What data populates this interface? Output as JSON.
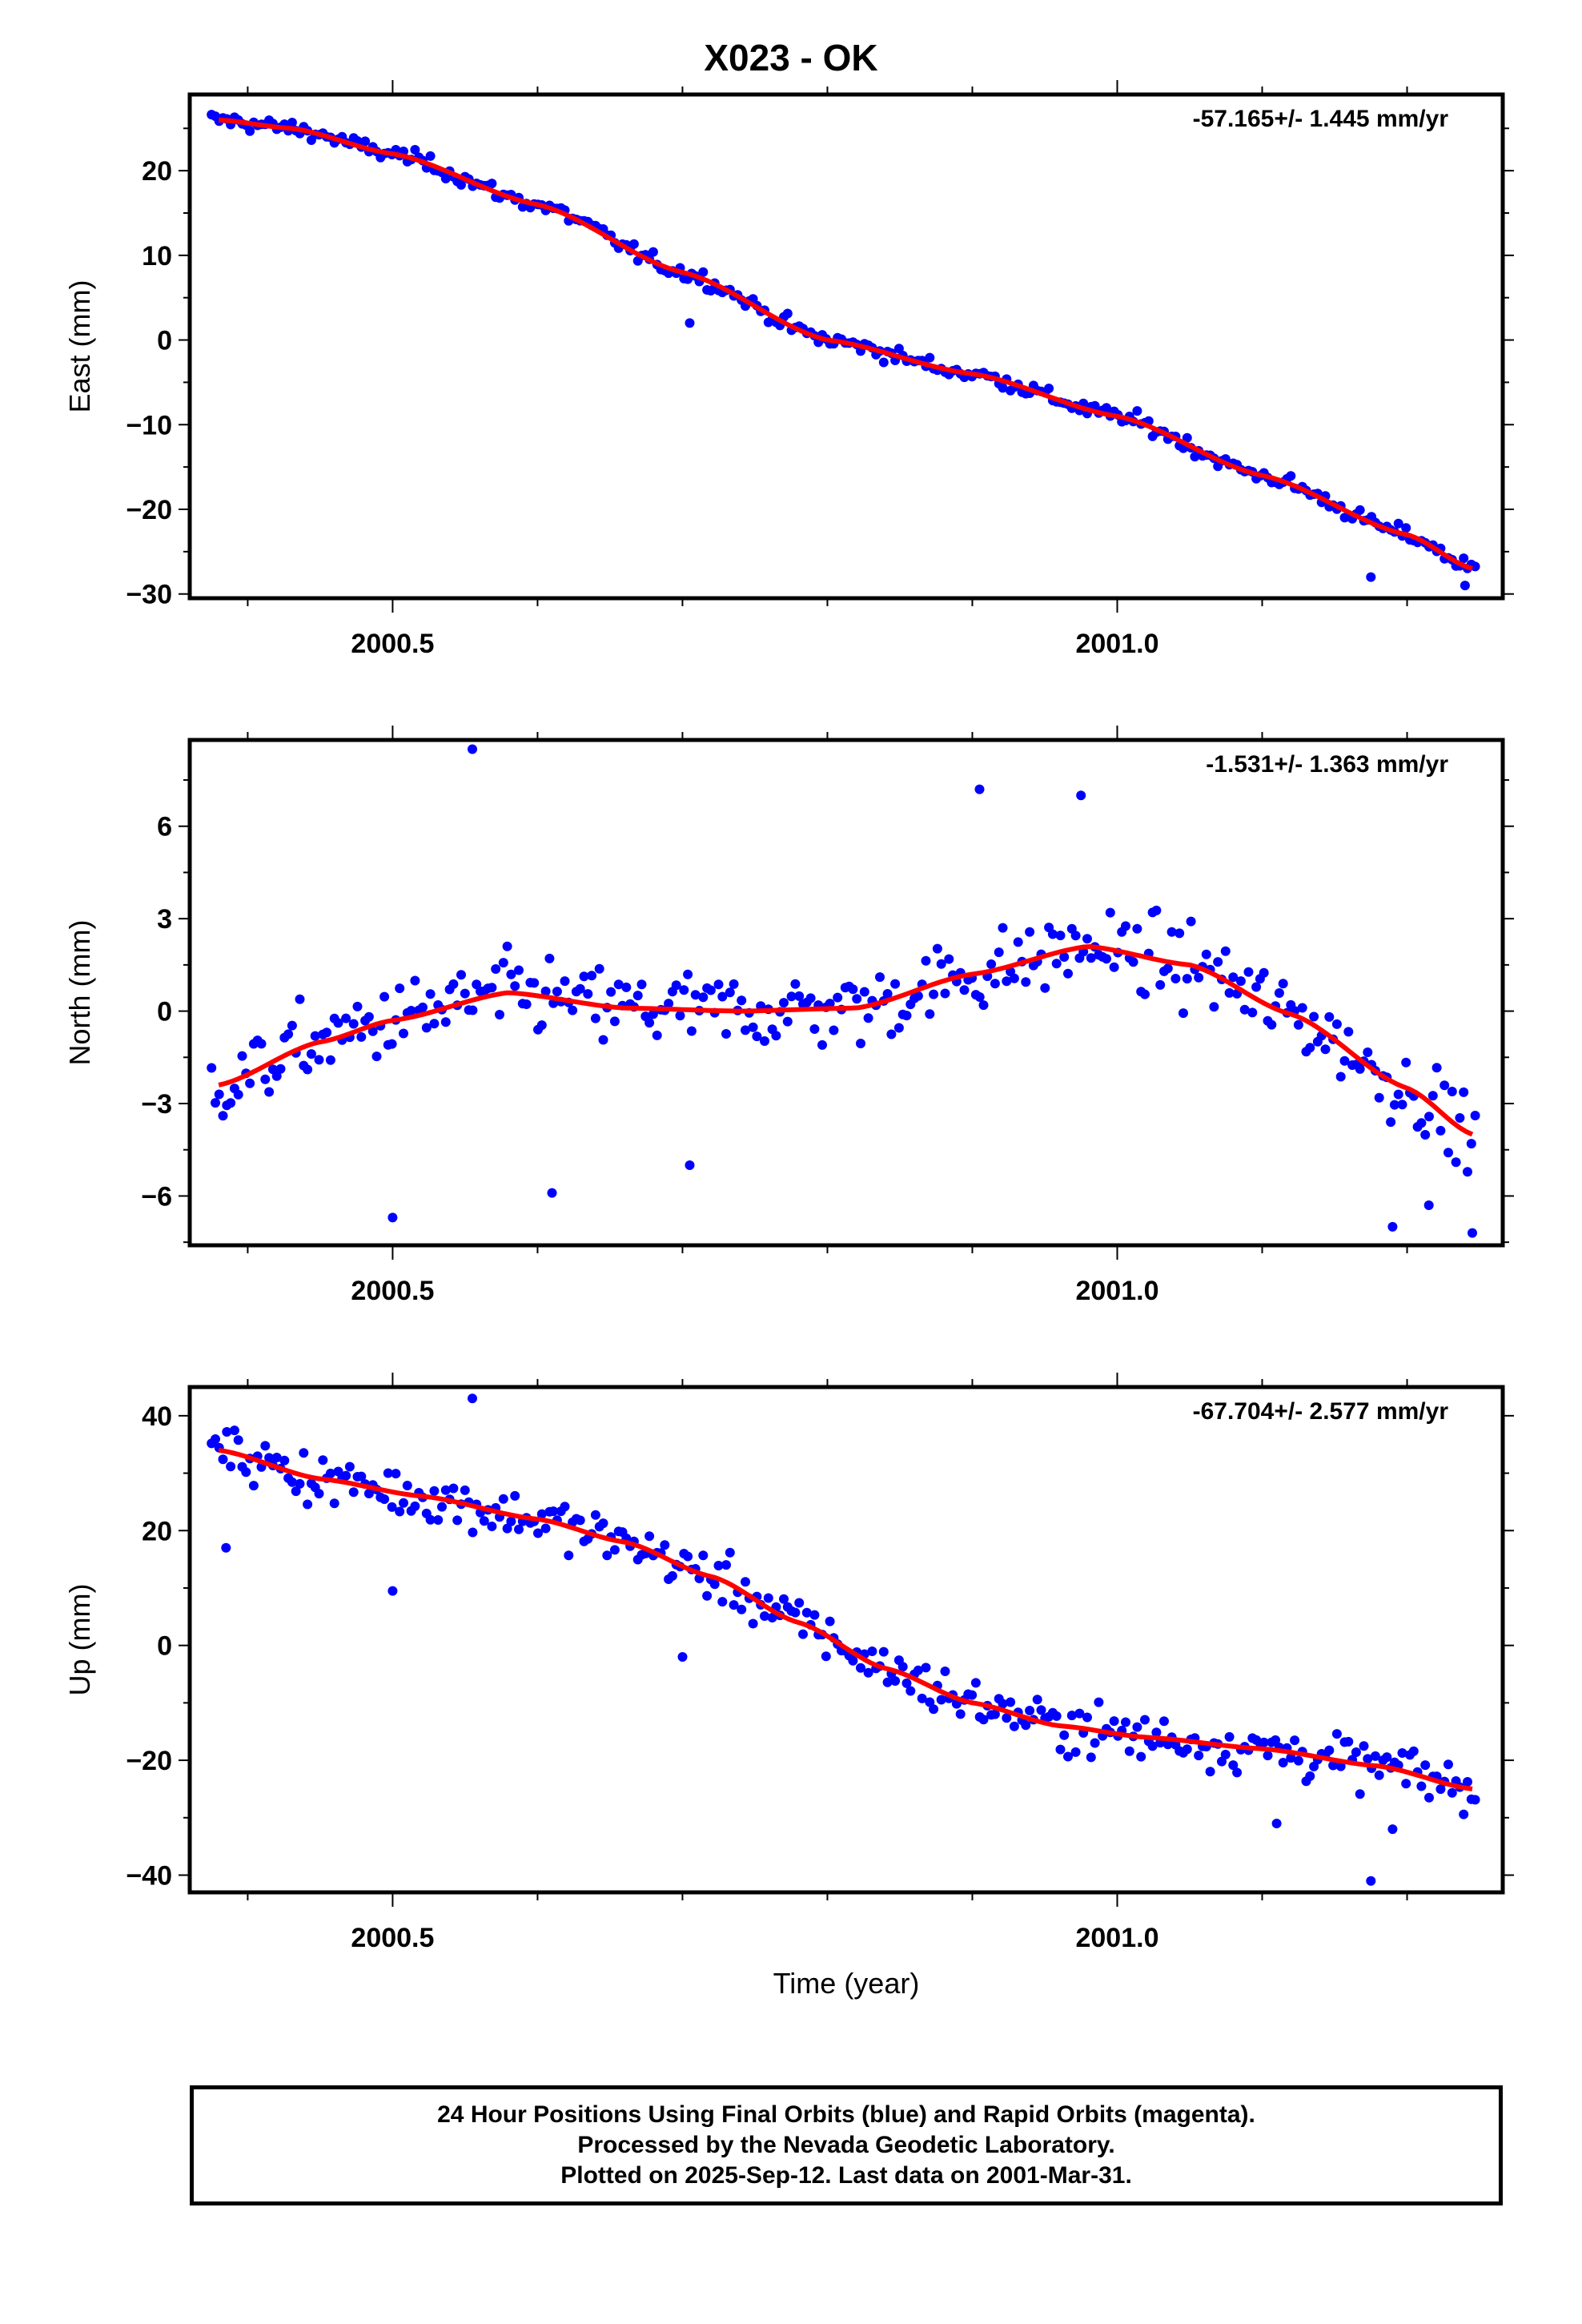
{
  "title": "X023 - OK",
  "xlabel": "Time (year)",
  "colors": {
    "points": "#0000ff",
    "fit": "#ff0000",
    "frame": "#000000"
  },
  "caption": {
    "line1": "24 Hour Positions Using Final Orbits (blue) and Rapid Orbits (magenta).",
    "line2": "Processed by the Nevada Geodetic Laboratory.",
    "line3": "Plotted on 2025-Sep-12. Last data on 2001-Mar-31."
  },
  "chart_data": [
    {
      "type": "scatter",
      "ylabel": "East (mm)",
      "rate_label": "-57.165+/- 1.445 mm/yr",
      "xlim": [
        2000.36,
        2001.266
      ],
      "ylim": [
        -30.5,
        29
      ],
      "xticks": [
        2000.5,
        2001.0
      ],
      "xtick_labels": [
        "2000.5",
        "2001.0"
      ],
      "yticks": [
        -30,
        -20,
        -10,
        0,
        10,
        20
      ],
      "ytick_labels": [
        "−30",
        "−20",
        "−10",
        "0",
        "10",
        "20"
      ],
      "trend": {
        "rate": -57.165,
        "y0": 0.0,
        "x0": 2000.8,
        "amp": 0.8,
        "period": 1.0,
        "phase": 0.3
      },
      "fit": {
        "x": [
          2000.38,
          2000.43,
          2000.5,
          2000.6,
          2000.7,
          2000.8,
          2000.9,
          2001.0,
          2001.1,
          2001.2,
          2001.245
        ],
        "y": [
          26,
          25,
          22,
          16,
          8,
          0,
          -4,
          -9,
          -16,
          -23,
          -27
        ]
      },
      "noise": 1.2,
      "outliers": [
        [
          2000.705,
          2
        ],
        [
          2001.175,
          -28
        ],
        [
          2001.24,
          -29
        ]
      ]
    },
    {
      "type": "scatter",
      "ylabel": "North (mm)",
      "rate_label": "-1.531+/- 1.363 mm/yr",
      "xlim": [
        2000.36,
        2001.266
      ],
      "ylim": [
        -7.6,
        8.8
      ],
      "xticks": [
        2000.5,
        2001.0
      ],
      "xtick_labels": [
        "2000.5",
        "2001.0"
      ],
      "yticks": [
        -6,
        -3,
        0,
        3,
        6
      ],
      "ytick_labels": [
        "−6",
        "−3",
        "0",
        "3",
        "6"
      ],
      "fit": {
        "x": [
          2000.38,
          2000.45,
          2000.5,
          2000.58,
          2000.66,
          2000.74,
          2000.82,
          2000.9,
          2000.98,
          2001.05,
          2001.12,
          2001.2,
          2001.245
        ],
        "y": [
          -2.4,
          -1.0,
          -0.3,
          0.6,
          0.1,
          0.0,
          0.1,
          1.2,
          2.1,
          1.5,
          -0.1,
          -2.5,
          -4.0
        ]
      },
      "noise": 1.6,
      "outliers": [
        [
          2000.555,
          8.5
        ],
        [
          2000.5,
          -6.7
        ],
        [
          2000.61,
          -5.9
        ],
        [
          2000.705,
          -5.0
        ],
        [
          2000.905,
          7.2
        ],
        [
          2000.975,
          7.0
        ],
        [
          2001.19,
          -7.0
        ],
        [
          2001.245,
          -7.2
        ],
        [
          2001.215,
          -6.3
        ]
      ]
    },
    {
      "type": "scatter",
      "ylabel": "Up (mm)",
      "rate_label": "-67.704+/- 2.577 mm/yr",
      "xlim": [
        2000.36,
        2001.266
      ],
      "ylim": [
        -43,
        45
      ],
      "xticks": [
        2000.5,
        2001.0
      ],
      "xtick_labels": [
        "2000.5",
        "2001.0"
      ],
      "yticks": [
        -40,
        -20,
        0,
        20,
        40
      ],
      "ytick_labels": [
        "−40",
        "−20",
        "0",
        "20",
        "40"
      ],
      "fit": {
        "x": [
          2000.38,
          2000.45,
          2000.52,
          2000.6,
          2000.66,
          2000.72,
          2000.78,
          2000.84,
          2000.9,
          2000.96,
          2001.02,
          2001.1,
          2001.18,
          2001.245
        ],
        "y": [
          34,
          29,
          26,
          22,
          18,
          12,
          4,
          -4,
          -10,
          -14,
          -16,
          -18,
          -21,
          -25
        ]
      },
      "noise": 5.5,
      "outliers": [
        [
          2000.555,
          43
        ],
        [
          2000.5,
          9.5
        ],
        [
          2000.385,
          17
        ],
        [
          2000.7,
          -2
        ],
        [
          2001.175,
          -41
        ],
        [
          2001.19,
          -32
        ],
        [
          2001.11,
          -31
        ]
      ]
    }
  ]
}
